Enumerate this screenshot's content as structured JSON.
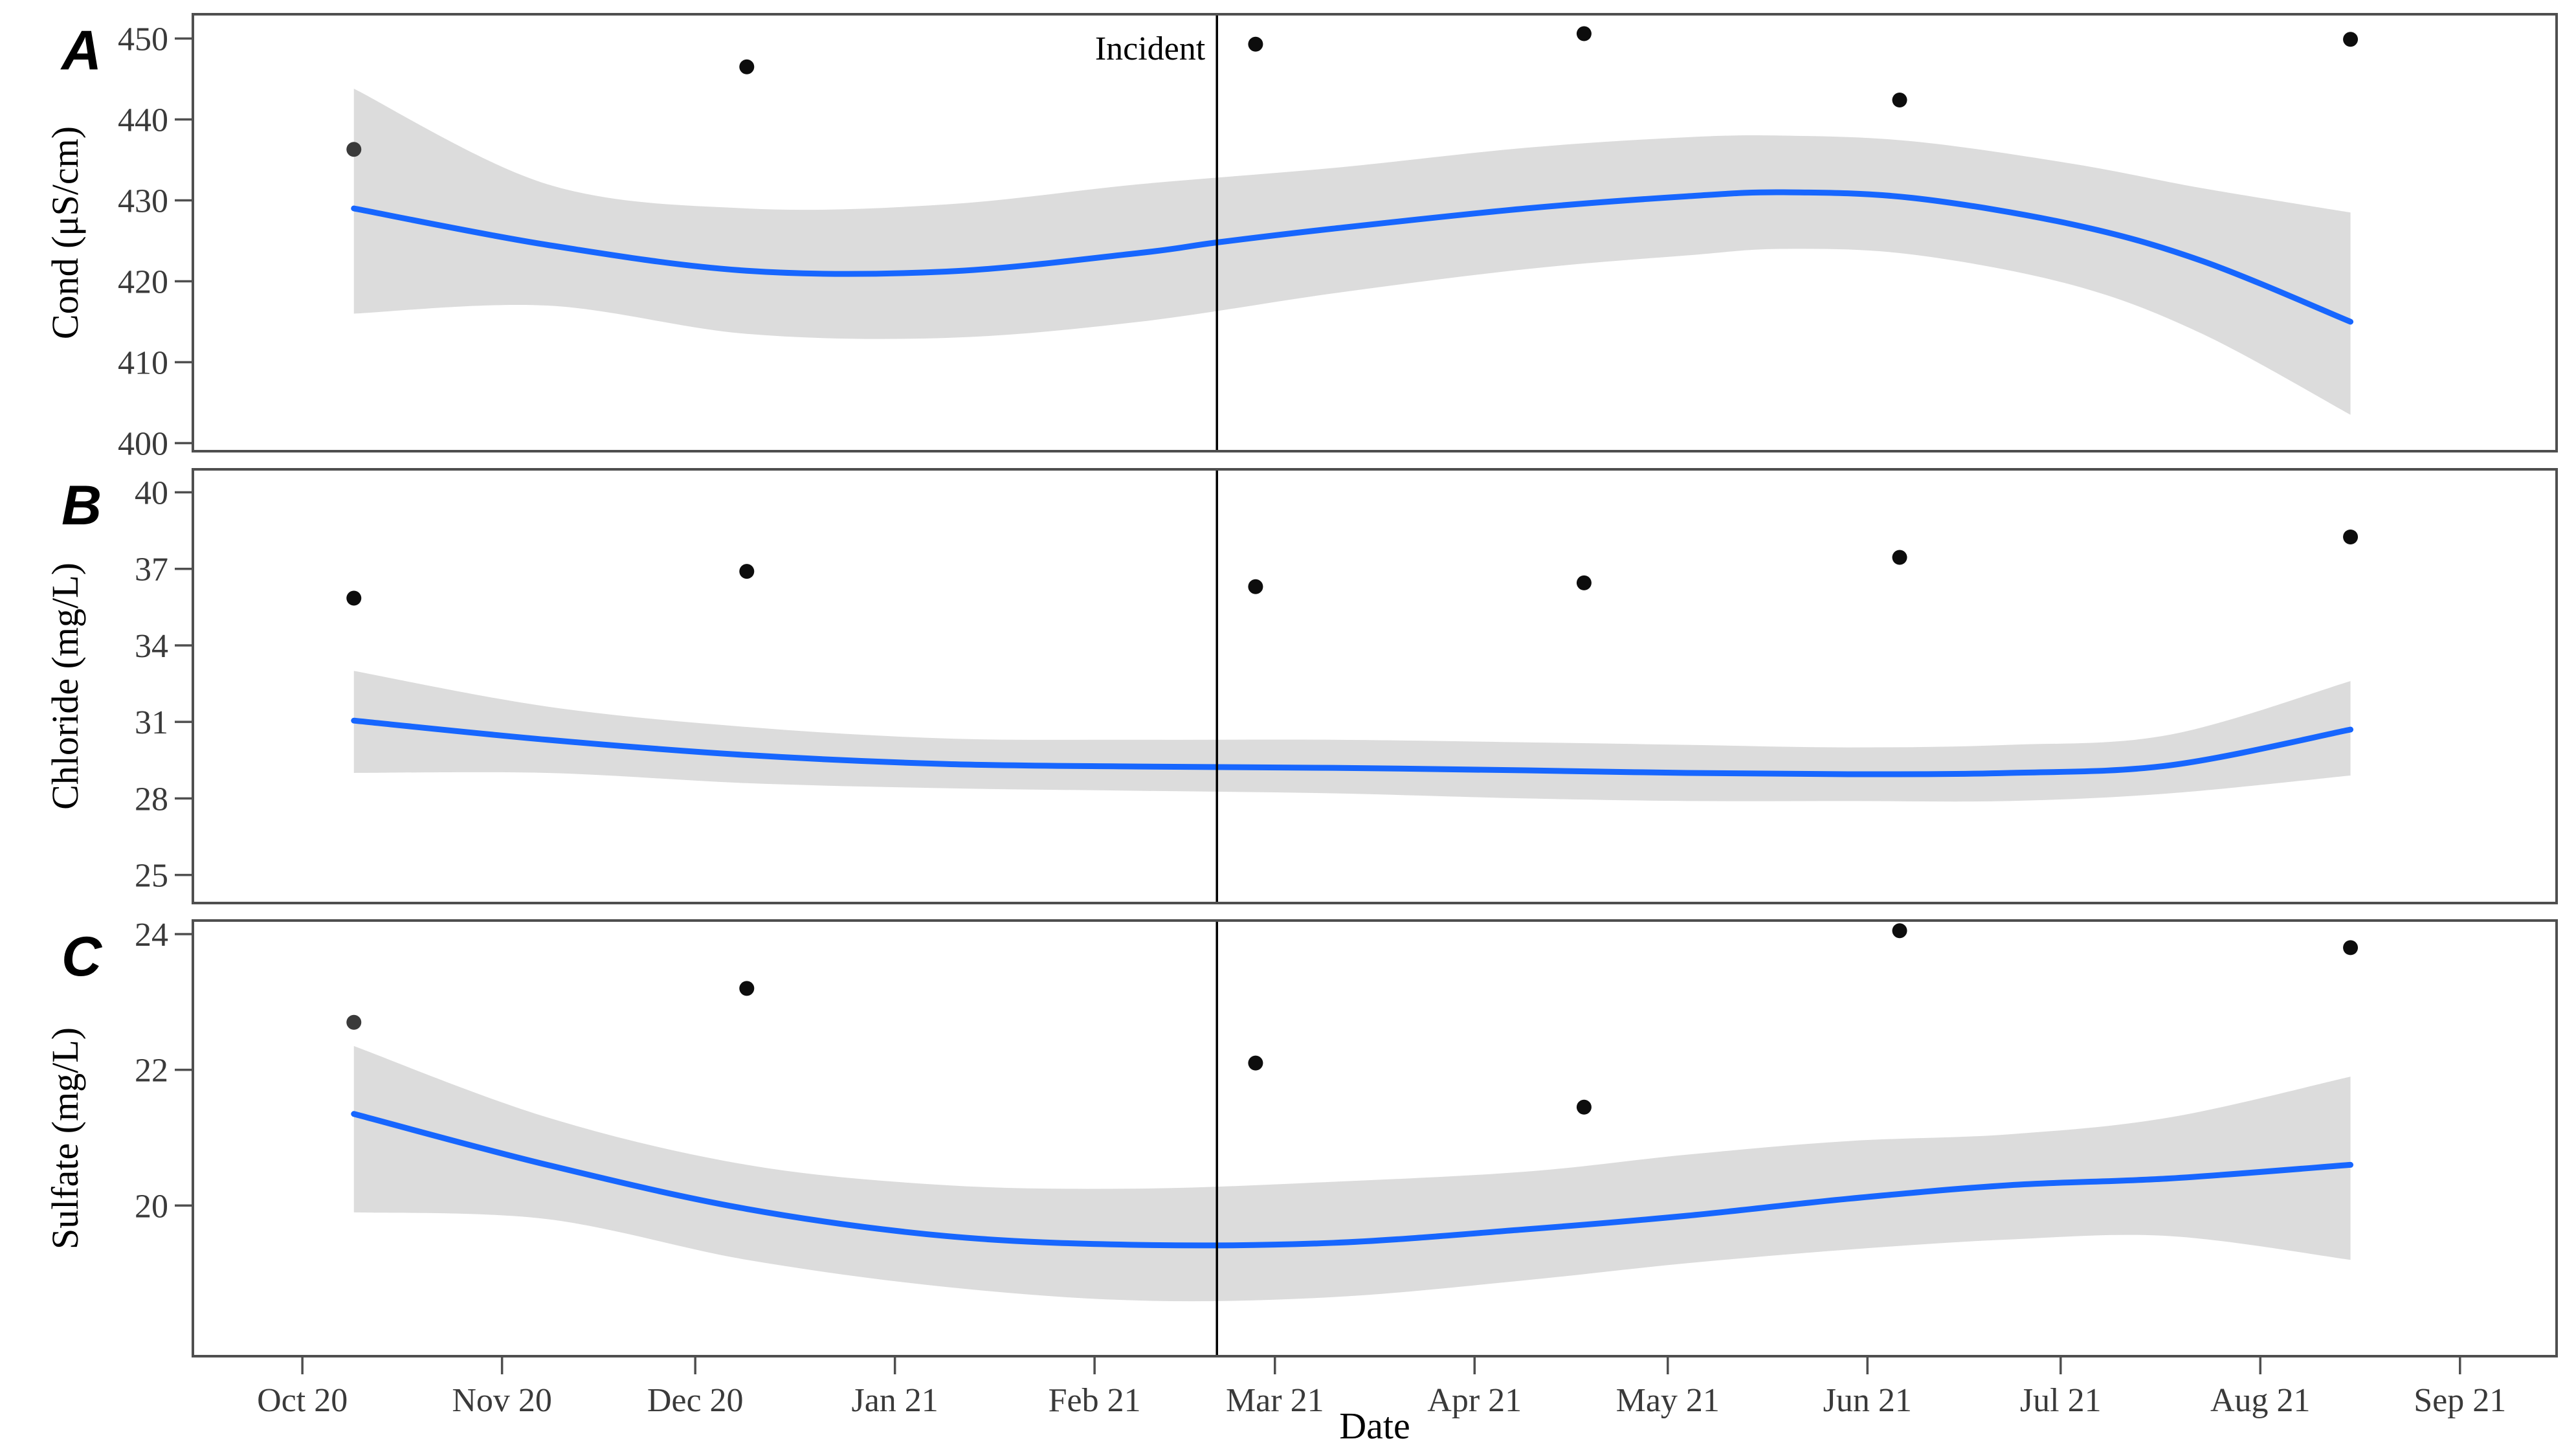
{
  "chart_data": {
    "type": "multi-panel-timeseries",
    "description": "Three stacked scatter plots with loess smooth line and confidence band, vertical incident marker",
    "x_axis": {
      "label": "Date",
      "unit": "days since 2020-10-01",
      "tick_labels": [
        "Oct 20",
        "Nov 20",
        "Dec 20",
        "Jan 21",
        "Feb 21",
        "Mar 21",
        "Apr 21",
        "May 21",
        "Jun 21",
        "Jul 21",
        "Aug 21",
        "Sep 21"
      ],
      "tick_days": [
        0,
        31,
        61,
        92,
        123,
        151,
        182,
        212,
        243,
        273,
        304,
        335
      ],
      "domain_days": [
        -17,
        350
      ]
    },
    "incident_marker": {
      "label": "Incident",
      "day": 142
    },
    "sample_days": [
      8,
      69,
      148,
      199,
      248,
      318
    ],
    "panels": [
      {
        "letter": "A",
        "ylabel": "Cond (μS/cm)",
        "yticks": [
          450,
          440,
          430,
          420,
          410,
          400
        ],
        "ylim": [
          399,
          453
        ],
        "points": [
          436.3,
          446.5,
          449.3,
          450.6,
          442.4,
          449.9
        ],
        "muted_point_indices": [
          0
        ],
        "smooth": {
          "days": [
            8,
            38,
            69,
            100,
            130,
            142,
            160,
            190,
            215,
            230,
            250,
            275,
            295,
            318
          ],
          "values": [
            429,
            424.5,
            421.3,
            421.2,
            423.5,
            424.8,
            426.5,
            429,
            430.5,
            431,
            430.3,
            427,
            422.5,
            415
          ]
        },
        "band": {
          "days": [
            8,
            38,
            69,
            100,
            130,
            160,
            190,
            215,
            230,
            250,
            275,
            295,
            318
          ],
          "upper": [
            443.8,
            432,
            429,
            429.5,
            432,
            434,
            436.5,
            437.8,
            438,
            437.3,
            434.5,
            431.5,
            428.5
          ],
          "lower": [
            416,
            417,
            413.5,
            413,
            415,
            418.5,
            421.5,
            423.2,
            424,
            423.3,
            419.5,
            413.5,
            403.5
          ]
        }
      },
      {
        "letter": "B",
        "ylabel": "Chloride (mg/L)",
        "yticks": [
          40,
          37,
          34,
          31,
          28,
          25
        ],
        "ylim": [
          23.9,
          40.9
        ],
        "points": [
          35.85,
          36.9,
          36.3,
          36.45,
          37.45,
          38.25
        ],
        "muted_point_indices": [],
        "smooth": {
          "days": [
            8,
            38,
            69,
            100,
            130,
            160,
            190,
            215,
            240,
            265,
            290,
            318
          ],
          "values": [
            31.05,
            30.3,
            29.7,
            29.35,
            29.25,
            29.2,
            29.1,
            29.0,
            28.95,
            29.0,
            29.3,
            30.7
          ]
        },
        "band": {
          "days": [
            8,
            38,
            69,
            100,
            130,
            160,
            190,
            215,
            240,
            265,
            290,
            318
          ],
          "upper": [
            33.0,
            31.6,
            30.8,
            30.35,
            30.3,
            30.3,
            30.2,
            30.1,
            30.0,
            30.1,
            30.5,
            32.6
          ],
          "lower": [
            29.0,
            29.0,
            28.6,
            28.4,
            28.3,
            28.2,
            28.0,
            27.9,
            27.9,
            27.9,
            28.2,
            28.9
          ]
        }
      },
      {
        "letter": "C",
        "ylabel": "Sulfate (mg/L)",
        "yticks": [
          24,
          22,
          20
        ],
        "ylim": [
          17.78,
          24.2
        ],
        "points": [
          22.7,
          23.2,
          22.1,
          21.45,
          24.05,
          23.8
        ],
        "muted_point_indices": [
          0
        ],
        "smooth": {
          "days": [
            8,
            38,
            69,
            100,
            130,
            160,
            190,
            215,
            240,
            265,
            290,
            318
          ],
          "values": [
            21.35,
            20.6,
            19.95,
            19.55,
            19.42,
            19.45,
            19.65,
            19.85,
            20.1,
            20.3,
            20.4,
            20.6
          ]
        },
        "band": {
          "days": [
            8,
            38,
            69,
            100,
            130,
            160,
            190,
            215,
            240,
            265,
            290,
            318
          ],
          "upper": [
            22.35,
            21.3,
            20.6,
            20.3,
            20.25,
            20.35,
            20.5,
            20.75,
            20.95,
            21.05,
            21.3,
            21.9
          ],
          "lower": [
            19.9,
            19.8,
            19.2,
            18.8,
            18.6,
            18.65,
            18.9,
            19.15,
            19.35,
            19.5,
            19.55,
            19.2
          ]
        }
      }
    ],
    "grid": "off",
    "legend": "none"
  },
  "styles": {
    "smooth_line_color": "#1766fe",
    "band_color": "#dcdcdc",
    "point_color": "#0d0d0d",
    "muted_point_color": "#3a3a3a",
    "axis_color": "#4f4f4f",
    "tick_text_color": "#3a3a3a",
    "text_color": "#000000",
    "incident_line_color": "#000000",
    "background_color": "#ffffff"
  }
}
